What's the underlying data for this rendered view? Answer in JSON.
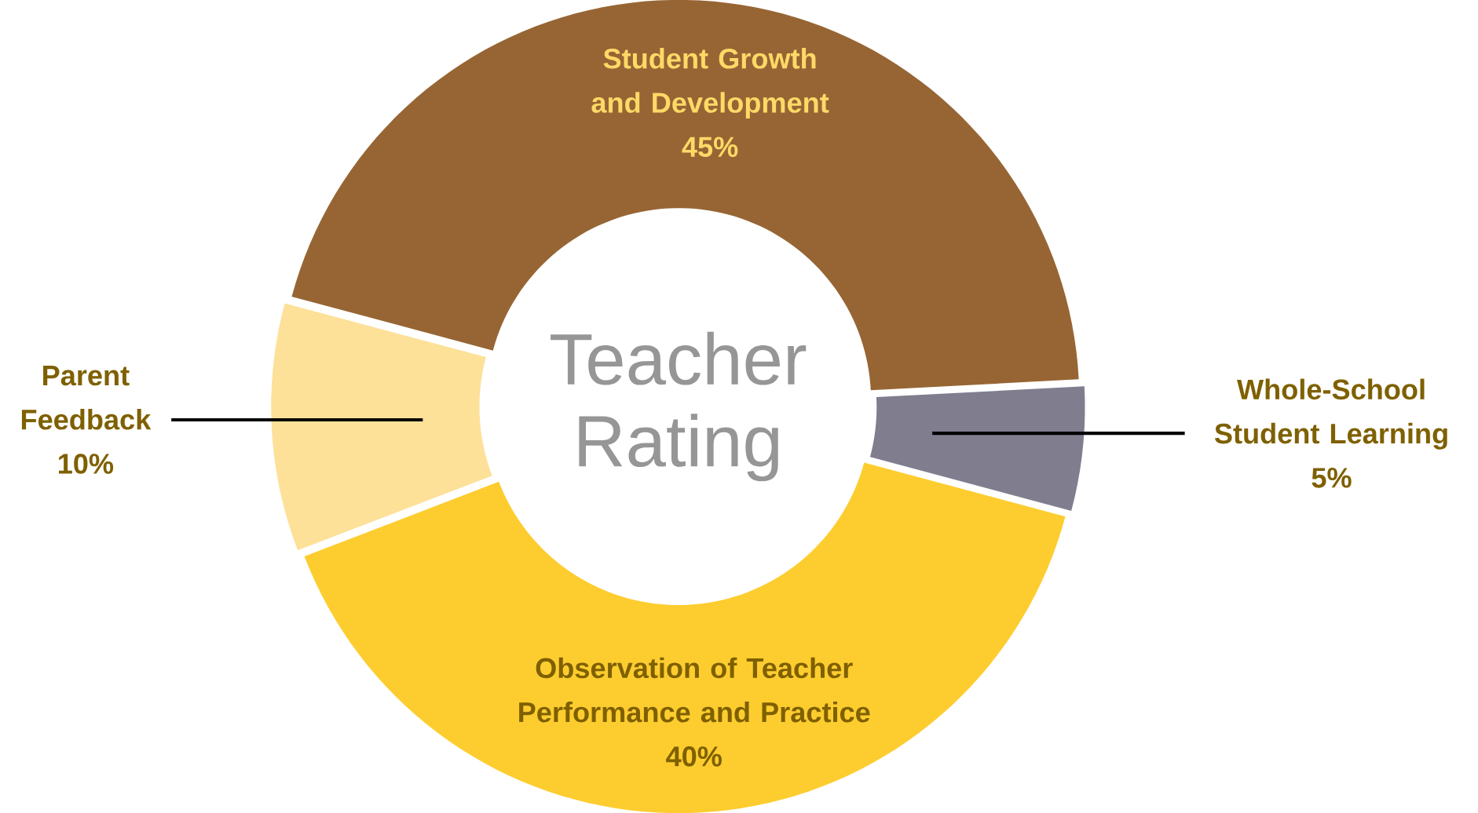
{
  "chart_data": {
    "type": "donut",
    "title": "Teacher Rating",
    "categories": [
      "Student Growth and Development",
      "Whole-School Student Learning",
      "Observation of Teacher Performance and Practice",
      "Parent Feedback"
    ],
    "values": [
      45,
      5,
      40,
      10
    ],
    "value_labels": [
      "45%",
      "5%",
      "40%",
      "10%"
    ],
    "colors": [
      "#976534",
      "#7f7d8e",
      "#fdcd2f",
      "#fde199"
    ]
  }
}
